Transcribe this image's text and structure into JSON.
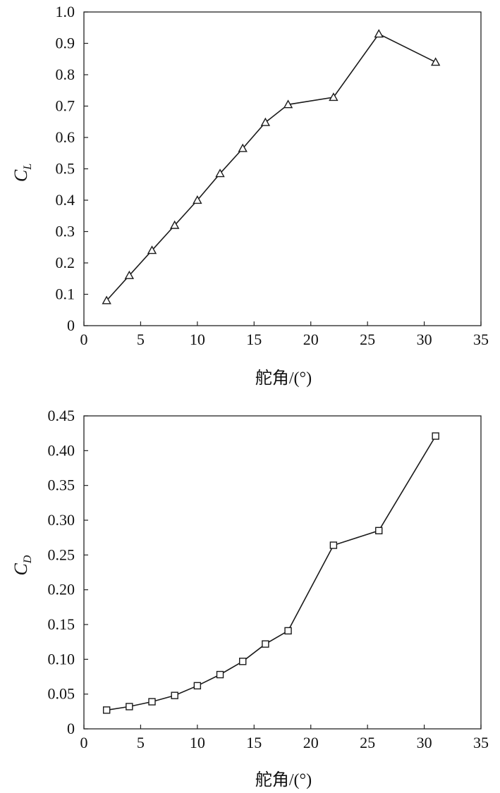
{
  "chart_data": [
    {
      "type": "line",
      "ylabel": "C",
      "ylabel_subscript": "L",
      "xlabel": "舵角/(°)",
      "xlim": [
        0,
        35
      ],
      "ylim": [
        0,
        1.0
      ],
      "x_ticks": [
        "0",
        "5",
        "10",
        "15",
        "20",
        "25",
        "30",
        "35"
      ],
      "y_ticks": [
        "0",
        "0.1",
        "0.2",
        "0.3",
        "0.4",
        "0.5",
        "0.6",
        "0.7",
        "0.8",
        "0.9",
        "1.0"
      ],
      "grid": false,
      "marker": "triangle",
      "series": [
        {
          "x": [
            2,
            4,
            6,
            8,
            10,
            12,
            14,
            16,
            18,
            22,
            26,
            31
          ],
          "values": [
            0.08,
            0.16,
            0.24,
            0.32,
            0.4,
            0.485,
            0.565,
            0.648,
            0.705,
            0.728,
            0.93,
            0.84
          ]
        }
      ]
    },
    {
      "type": "line",
      "ylabel": "C",
      "ylabel_subscript": "D",
      "xlabel": "舵角/(°)",
      "xlim": [
        0,
        35
      ],
      "ylim": [
        0,
        0.45
      ],
      "x_ticks": [
        "0",
        "5",
        "10",
        "15",
        "20",
        "25",
        "30",
        "35"
      ],
      "y_ticks": [
        "0",
        "0.05",
        "0.10",
        "0.15",
        "0.20",
        "0.25",
        "0.30",
        "0.35",
        "0.40",
        "0.45"
      ],
      "grid": false,
      "marker": "square",
      "series": [
        {
          "x": [
            2,
            4,
            6,
            8,
            10,
            12,
            14,
            16,
            18,
            22,
            26,
            31
          ],
          "values": [
            0.027,
            0.032,
            0.039,
            0.048,
            0.062,
            0.078,
            0.097,
            0.122,
            0.141,
            0.264,
            0.285,
            0.421
          ]
        }
      ]
    }
  ]
}
